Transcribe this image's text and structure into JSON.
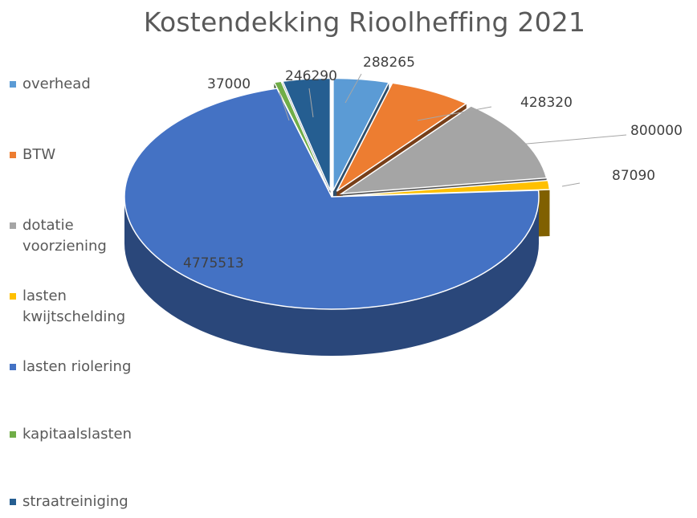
{
  "chart_data": {
    "type": "pie",
    "title": "Kostendekking Rioolheffing 2021",
    "legend_position": "left",
    "style": "3d-exploded",
    "slices": [
      {
        "label": "overhead",
        "value": 288265,
        "color": "#5b9bd5"
      },
      {
        "label": "BTW",
        "value": 428320,
        "color": "#ed7d31"
      },
      {
        "label": "dotatie voorziening",
        "value": 800000,
        "color": "#a5a5a5"
      },
      {
        "label": "lasten kwijtschelding",
        "value": 87090,
        "color": "#ffc000"
      },
      {
        "label": "lasten riolering",
        "value": 4775513,
        "color": "#4472c4"
      },
      {
        "label": "kapitaalslasten",
        "value": 37000,
        "color": "#70ad47"
      },
      {
        "label": "straatreiniging",
        "value": 246290,
        "color": "#255e91"
      }
    ],
    "value_labels": [
      "288265",
      "428320",
      "800000",
      "87090",
      "4775513",
      "37000",
      "246290"
    ]
  }
}
